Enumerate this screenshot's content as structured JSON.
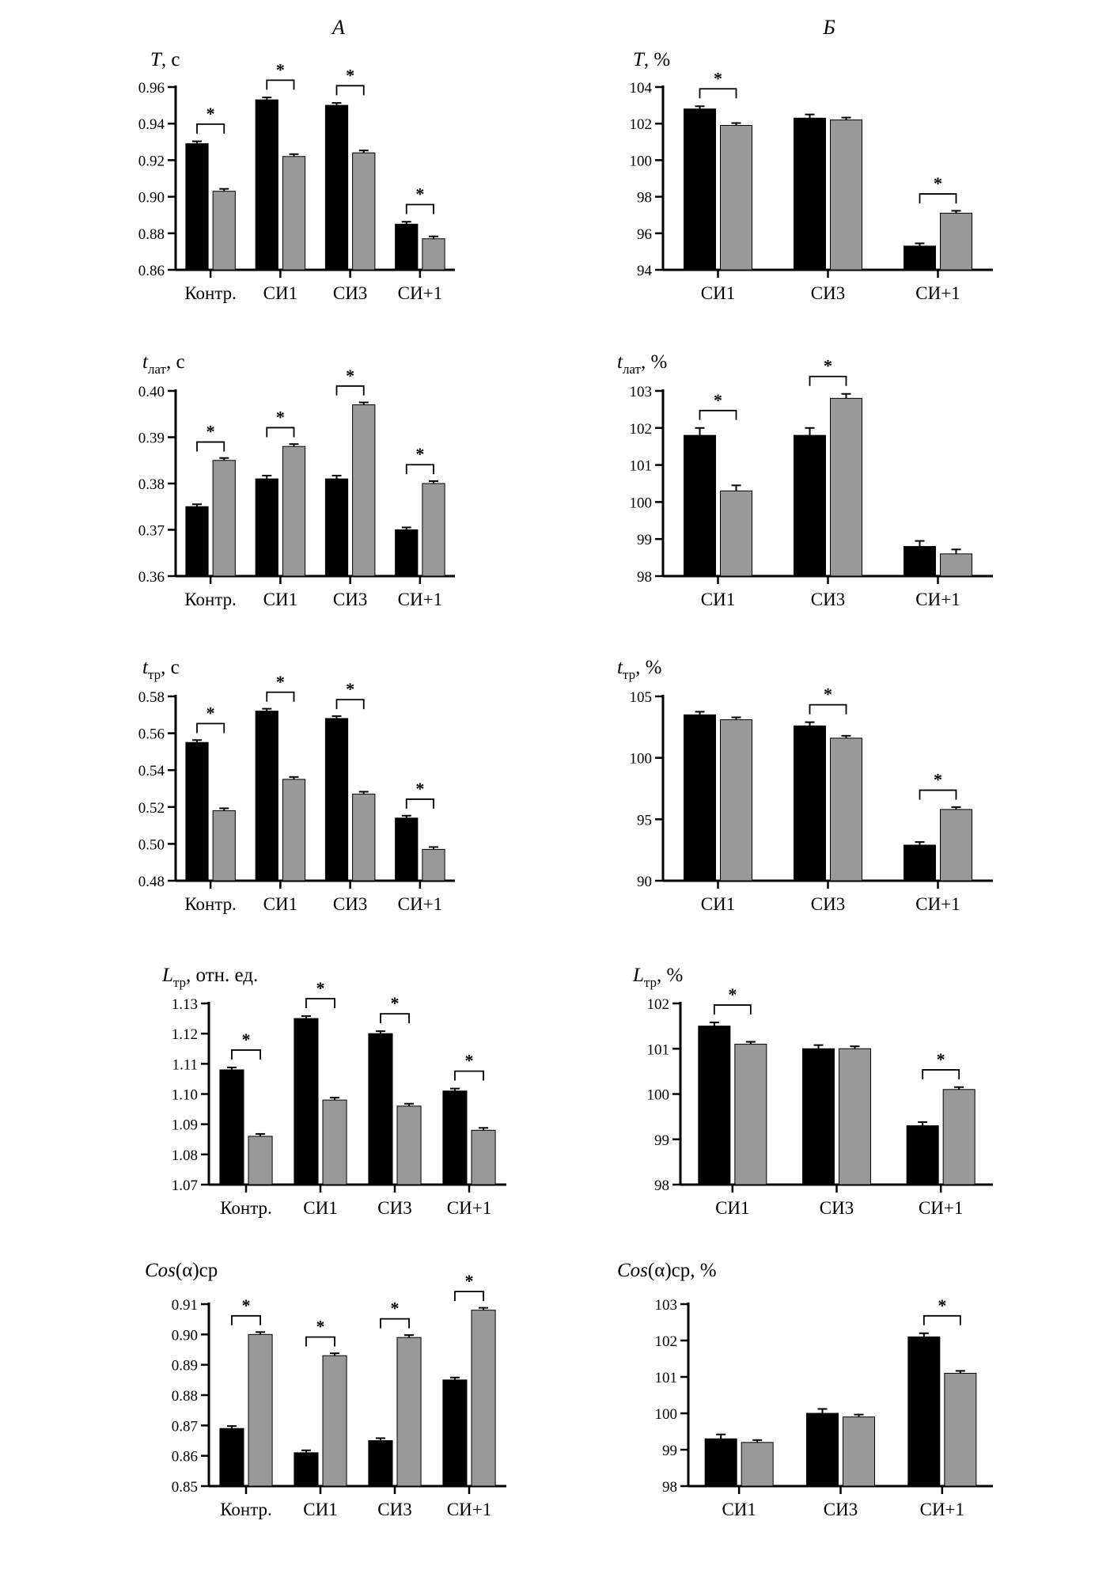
{
  "column_headers": {
    "left": "А",
    "right": "Б"
  },
  "colors": {
    "series_a": "#000000",
    "series_b": "#999999",
    "axis": "#000000"
  },
  "chart_data": [
    {
      "type": "bar",
      "title": {
        "sym": "T",
        "sub": "",
        "unit": ", с"
      },
      "categories": [
        "Контр.",
        "СИ1",
        "СИ3",
        "СИ+1"
      ],
      "series": [
        {
          "values": [
            0.929,
            0.953,
            0.95,
            0.885
          ],
          "errors": [
            0.0012,
            0.0012,
            0.0012,
            0.0012
          ]
        },
        {
          "values": [
            0.903,
            0.922,
            0.924,
            0.877
          ],
          "errors": [
            0.0006,
            0.0006,
            0.0006,
            0.0006
          ]
        }
      ],
      "significant": [
        true,
        true,
        true,
        true
      ],
      "ylim": [
        0.86,
        0.96
      ],
      "yticks": [
        "0.86",
        "0.88",
        "0.90",
        "0.92",
        "0.94",
        "0.96"
      ]
    },
    {
      "type": "bar",
      "title": {
        "sym": "T",
        "sub": "",
        "unit": ", %"
      },
      "categories": [
        "СИ1",
        "СИ3",
        "СИ+1"
      ],
      "series": [
        {
          "values": [
            102.8,
            102.3,
            95.3
          ],
          "errors": [
            0.15,
            0.2,
            0.15
          ]
        },
        {
          "values": [
            101.9,
            102.2,
            97.1
          ],
          "errors": [
            0.08,
            0.08,
            0.1
          ]
        }
      ],
      "significant": [
        true,
        false,
        true
      ],
      "ylim": [
        94,
        104
      ],
      "yticks": [
        "94",
        "96",
        "98",
        "100",
        "102",
        "104"
      ]
    },
    {
      "type": "bar",
      "title": {
        "sym": "t",
        "sub": "лат",
        "unit": ", с"
      },
      "categories": [
        "Контр.",
        "СИ1",
        "СИ3",
        "СИ+1"
      ],
      "series": [
        {
          "values": [
            0.375,
            0.381,
            0.381,
            0.37
          ],
          "errors": [
            0.0004,
            0.0007,
            0.0007,
            0.0004
          ]
        },
        {
          "values": [
            0.385,
            0.388,
            0.397,
            0.38
          ],
          "errors": [
            0.0002,
            0.0003,
            0.0003,
            0.0003
          ]
        }
      ],
      "significant": [
        true,
        true,
        true,
        true
      ],
      "ylim": [
        0.36,
        0.4
      ],
      "yticks": [
        "0.36",
        "0.37",
        "0.38",
        "0.39",
        "0.40"
      ]
    },
    {
      "type": "bar",
      "title": {
        "sym": "t",
        "sub": "лат",
        "unit": ", %"
      },
      "categories": [
        "СИ1",
        "СИ3",
        "СИ+1"
      ],
      "series": [
        {
          "values": [
            101.8,
            101.8,
            98.8
          ],
          "errors": [
            0.2,
            0.2,
            0.15
          ]
        },
        {
          "values": [
            100.3,
            102.8,
            98.6
          ],
          "errors": [
            0.15,
            0.12,
            0.12
          ]
        }
      ],
      "significant": [
        true,
        true,
        false
      ],
      "ylim": [
        98,
        103
      ],
      "yticks": [
        "98",
        "99",
        "100",
        "101",
        "102",
        "103"
      ]
    },
    {
      "type": "bar",
      "title": {
        "sym": "t",
        "sub": "тр",
        "unit": ", с"
      },
      "categories": [
        "Контр.",
        "СИ1",
        "СИ3",
        "СИ+1"
      ],
      "series": [
        {
          "values": [
            0.555,
            0.572,
            0.568,
            0.514
          ],
          "errors": [
            0.0008,
            0.0008,
            0.0008,
            0.0008
          ]
        },
        {
          "values": [
            0.518,
            0.535,
            0.527,
            0.497
          ],
          "errors": [
            0.0005,
            0.0005,
            0.0005,
            0.0005
          ]
        }
      ],
      "significant": [
        true,
        true,
        true,
        true
      ],
      "ylim": [
        0.48,
        0.58
      ],
      "yticks": [
        "0.48",
        "0.50",
        "0.52",
        "0.54",
        "0.56",
        "0.58"
      ]
    },
    {
      "type": "bar",
      "title": {
        "sym": "t",
        "sub": "тр",
        "unit": ", %"
      },
      "categories": [
        "СИ1",
        "СИ3",
        "СИ+1"
      ],
      "series": [
        {
          "values": [
            103.5,
            102.6,
            92.9
          ],
          "errors": [
            0.25,
            0.3,
            0.25
          ]
        },
        {
          "values": [
            103.1,
            101.6,
            95.8
          ],
          "errors": [
            0.15,
            0.15,
            0.15
          ]
        }
      ],
      "significant": [
        false,
        true,
        true
      ],
      "ylim": [
        90,
        105
      ],
      "yticks": [
        "90",
        "95",
        "100",
        "105"
      ]
    },
    {
      "type": "bar",
      "title": {
        "sym": "L",
        "sub": "тр",
        "unit": ", отн. ед."
      },
      "categories": [
        "Контр.",
        "СИ1",
        "СИ3",
        "СИ+1"
      ],
      "series": [
        {
          "values": [
            1.108,
            1.125,
            1.12,
            1.101
          ],
          "errors": [
            0.0008,
            0.0008,
            0.0008,
            0.0008
          ]
        },
        {
          "values": [
            1.086,
            1.098,
            1.096,
            1.088
          ],
          "errors": [
            0.0004,
            0.0004,
            0.0004,
            0.0004
          ]
        }
      ],
      "significant": [
        true,
        true,
        true,
        true
      ],
      "ylim": [
        1.07,
        1.13
      ],
      "yticks": [
        "1.07",
        "1.08",
        "1.09",
        "1.10",
        "1.11",
        "1.12",
        "1.13"
      ]
    },
    {
      "type": "bar",
      "title": {
        "sym": "L",
        "sub": "тр",
        "unit": ", %"
      },
      "categories": [
        "СИ1",
        "СИ3",
        "СИ+1"
      ],
      "series": [
        {
          "values": [
            101.5,
            101.0,
            99.3
          ],
          "errors": [
            0.08,
            0.08,
            0.08
          ]
        },
        {
          "values": [
            101.1,
            101.0,
            100.1
          ],
          "errors": [
            0.05,
            0.05,
            0.05
          ]
        }
      ],
      "significant": [
        true,
        false,
        true
      ],
      "ylim": [
        98,
        102
      ],
      "yticks": [
        "98",
        "99",
        "100",
        "101",
        "102"
      ]
    },
    {
      "type": "bar",
      "title": {
        "sym": "Cos",
        "sub": "",
        "unit": "(α)ср"
      },
      "categories": [
        "Контр.",
        "СИ1",
        "СИ3",
        "СИ+1"
      ],
      "series": [
        {
          "values": [
            0.869,
            0.861,
            0.865,
            0.885
          ],
          "errors": [
            0.0008,
            0.0008,
            0.0008,
            0.0008
          ]
        },
        {
          "values": [
            0.9,
            0.893,
            0.899,
            0.908
          ],
          "errors": [
            0.0004,
            0.0004,
            0.0004,
            0.0004
          ]
        }
      ],
      "significant": [
        true,
        true,
        true,
        true
      ],
      "ylim": [
        0.85,
        0.91
      ],
      "yticks": [
        "0.85",
        "0.86",
        "0.87",
        "0.88",
        "0.89",
        "0.90",
        "0.91"
      ]
    },
    {
      "type": "bar",
      "title": {
        "sym": "Cos",
        "sub": "",
        "unit": "(α)ср, %"
      },
      "categories": [
        "СИ1",
        "СИ3",
        "СИ+1"
      ],
      "series": [
        {
          "values": [
            99.3,
            100.0,
            102.1
          ],
          "errors": [
            0.12,
            0.12,
            0.1
          ]
        },
        {
          "values": [
            99.2,
            99.9,
            101.1
          ],
          "errors": [
            0.05,
            0.05,
            0.05
          ]
        }
      ],
      "significant": [
        false,
        false,
        true
      ],
      "ylim": [
        98,
        103
      ],
      "yticks": [
        "98",
        "99",
        "100",
        "101",
        "102",
        "103"
      ]
    }
  ]
}
